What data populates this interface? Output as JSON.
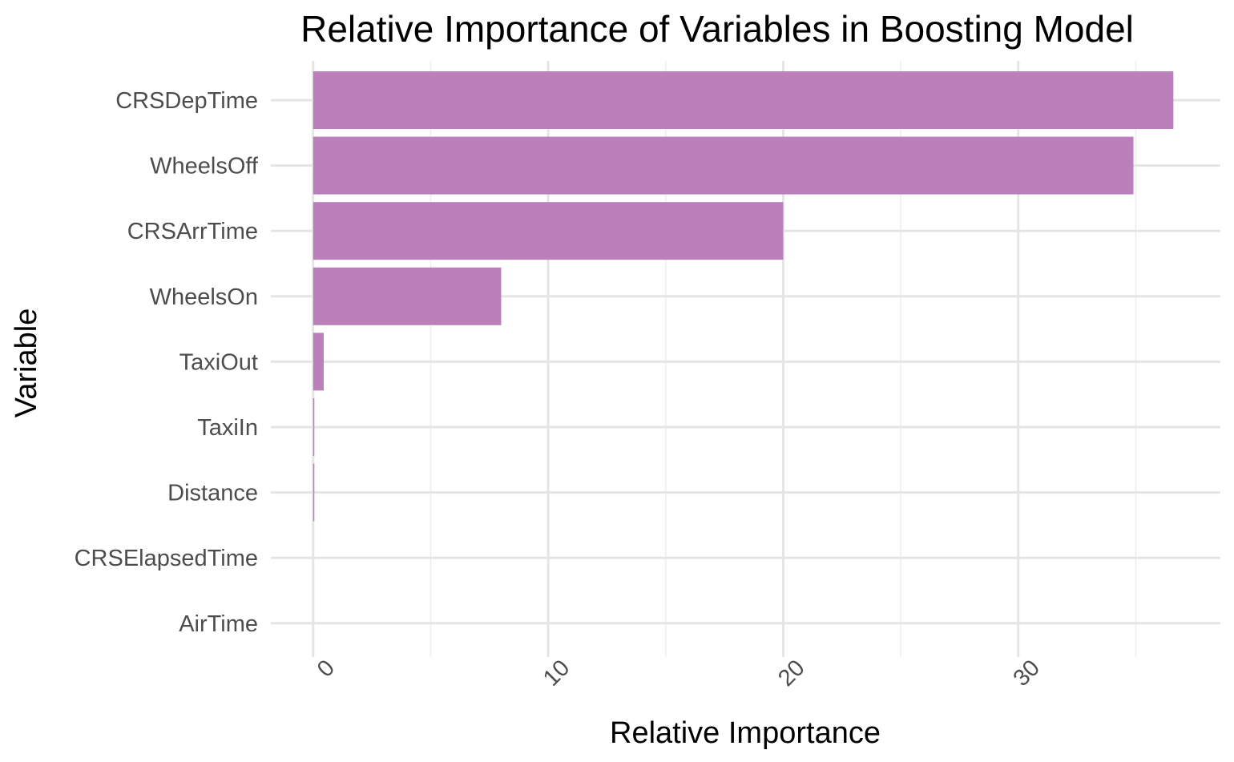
{
  "chart_data": {
    "type": "bar",
    "orientation": "horizontal",
    "title": "Relative Importance of Variables in Boosting Model",
    "xlabel": "Relative Importance",
    "ylabel": "Variable",
    "categories": [
      "CRSDepTime",
      "WheelsOff",
      "CRSArrTime",
      "WheelsOn",
      "TaxiOut",
      "TaxiIn",
      "Distance",
      "CRSElapsedTime",
      "AirTime"
    ],
    "values": [
      36.6,
      34.9,
      20.0,
      8.0,
      0.45,
      0.05,
      0.05,
      0.0,
      0.0
    ],
    "xlim": [
      -1.8,
      38.6
    ],
    "xticks": [
      0,
      10,
      20,
      30
    ],
    "xtick_labels": [
      "0",
      "10",
      "20",
      "30"
    ],
    "xtick_rotation": 45,
    "grid": true,
    "legend": "none",
    "bar_color": "#bb7fb9"
  }
}
